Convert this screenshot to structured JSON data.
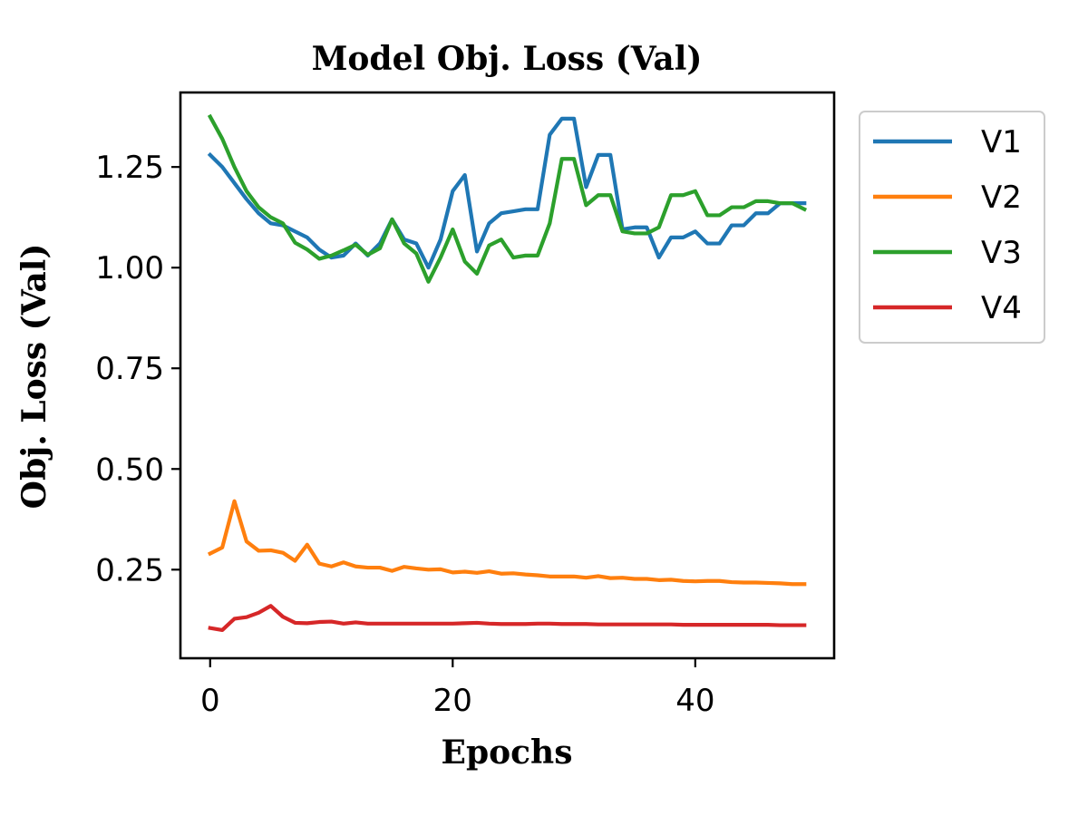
{
  "chart_data": {
    "type": "line",
    "title": "Model Obj. Loss (Val)",
    "xlabel": "Epochs",
    "ylabel": "Obj. Loss (Val)",
    "xlim": [
      -2.45,
      51.45
    ],
    "ylim": [
      0.03,
      1.435
    ],
    "xticks": [
      0,
      20,
      40
    ],
    "xtick_labels": [
      "0",
      "20",
      "40"
    ],
    "yticks": [
      0.25,
      0.5,
      0.75,
      1.0,
      1.25
    ],
    "ytick_labels": [
      "0.25",
      "0.50",
      "0.75",
      "1.00",
      "1.25"
    ],
    "grid": false,
    "legend_position": "outside top-right",
    "x": [
      0,
      1,
      2,
      3,
      4,
      5,
      6,
      7,
      8,
      9,
      10,
      11,
      12,
      13,
      14,
      15,
      16,
      17,
      18,
      19,
      20,
      21,
      22,
      23,
      24,
      25,
      26,
      27,
      28,
      29,
      30,
      31,
      32,
      33,
      34,
      35,
      36,
      37,
      38,
      39,
      40,
      41,
      42,
      43,
      44,
      45,
      46,
      47,
      48,
      49
    ],
    "series": [
      {
        "name": "V1",
        "color": "#1f77b4",
        "values": [
          1.28,
          1.25,
          1.21,
          1.17,
          1.135,
          1.11,
          1.105,
          1.09,
          1.075,
          1.045,
          1.025,
          1.03,
          1.06,
          1.03,
          1.06,
          1.12,
          1.07,
          1.06,
          1.0,
          1.07,
          1.19,
          1.23,
          1.04,
          1.11,
          1.135,
          1.14,
          1.145,
          1.145,
          1.33,
          1.37,
          1.37,
          1.2,
          1.28,
          1.28,
          1.095,
          1.1,
          1.1,
          1.025,
          1.075,
          1.075,
          1.09,
          1.06,
          1.06,
          1.105,
          1.105,
          1.135,
          1.135,
          1.16,
          1.16,
          1.16
        ]
      },
      {
        "name": "V2",
        "color": "#ff7f0e",
        "values": [
          0.29,
          0.305,
          0.42,
          0.32,
          0.297,
          0.298,
          0.292,
          0.272,
          0.312,
          0.265,
          0.258,
          0.268,
          0.258,
          0.255,
          0.255,
          0.247,
          0.257,
          0.253,
          0.25,
          0.251,
          0.243,
          0.245,
          0.242,
          0.246,
          0.24,
          0.241,
          0.238,
          0.236,
          0.233,
          0.233,
          0.233,
          0.23,
          0.234,
          0.229,
          0.23,
          0.227,
          0.227,
          0.224,
          0.225,
          0.222,
          0.221,
          0.222,
          0.222,
          0.219,
          0.218,
          0.218,
          0.217,
          0.216,
          0.214,
          0.214
        ]
      },
      {
        "name": "V3",
        "color": "#2ca02c",
        "values": [
          1.375,
          1.32,
          1.25,
          1.19,
          1.15,
          1.125,
          1.11,
          1.062,
          1.045,
          1.022,
          1.03,
          1.043,
          1.057,
          1.032,
          1.048,
          1.12,
          1.06,
          1.035,
          0.965,
          1.025,
          1.095,
          1.015,
          0.985,
          1.055,
          1.07,
          1.025,
          1.03,
          1.03,
          1.11,
          1.27,
          1.27,
          1.155,
          1.18,
          1.18,
          1.09,
          1.085,
          1.085,
          1.1,
          1.18,
          1.18,
          1.19,
          1.13,
          1.13,
          1.15,
          1.15,
          1.165,
          1.165,
          1.16,
          1.16,
          1.145
        ]
      },
      {
        "name": "V4",
        "color": "#d62728",
        "values": [
          0.105,
          0.1,
          0.128,
          0.132,
          0.143,
          0.16,
          0.133,
          0.118,
          0.117,
          0.12,
          0.121,
          0.116,
          0.119,
          0.116,
          0.116,
          0.116,
          0.116,
          0.116,
          0.116,
          0.116,
          0.116,
          0.117,
          0.118,
          0.116,
          0.115,
          0.115,
          0.115,
          0.116,
          0.116,
          0.115,
          0.115,
          0.115,
          0.114,
          0.114,
          0.114,
          0.114,
          0.114,
          0.114,
          0.114,
          0.113,
          0.113,
          0.113,
          0.113,
          0.113,
          0.113,
          0.113,
          0.113,
          0.112,
          0.112,
          0.112
        ]
      }
    ]
  }
}
